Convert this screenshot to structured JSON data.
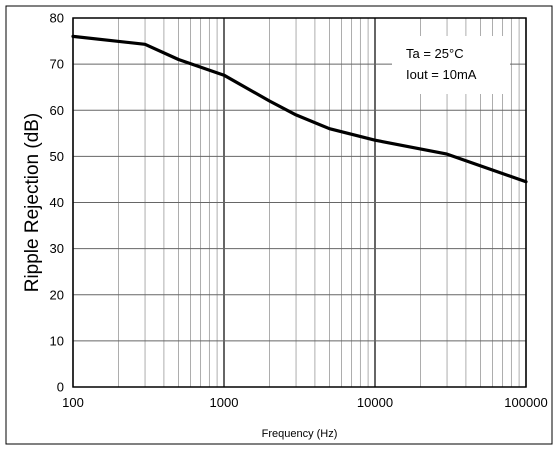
{
  "chart_data": {
    "type": "line",
    "xlabel": "Frequency (Hz)",
    "ylabel": "Ripple Rejection (dB)",
    "xscale": "log",
    "xlim": [
      100,
      100000
    ],
    "ylim": [
      0,
      80
    ],
    "xticks": [
      100,
      1000,
      10000,
      100000
    ],
    "xtick_labels": [
      "100",
      "1000",
      "10000",
      "100000"
    ],
    "yticks": [
      0,
      10,
      20,
      30,
      40,
      50,
      60,
      70,
      80
    ],
    "ytick_labels": [
      "0",
      "10",
      "20",
      "30",
      "40",
      "50",
      "60",
      "70",
      "80"
    ],
    "grid": true,
    "annotation": {
      "lines": [
        "Ta = 25°C",
        "Iout = 10mA"
      ],
      "placement": "top-right"
    },
    "series": [
      {
        "color": "#000000",
        "x": [
          100,
          300,
          500,
          1000,
          2000,
          3000,
          5000,
          10000,
          30000,
          100000
        ],
        "y": [
          76,
          74.3,
          71,
          67.6,
          62,
          59,
          56,
          53.5,
          50.5,
          44.5
        ]
      }
    ]
  }
}
